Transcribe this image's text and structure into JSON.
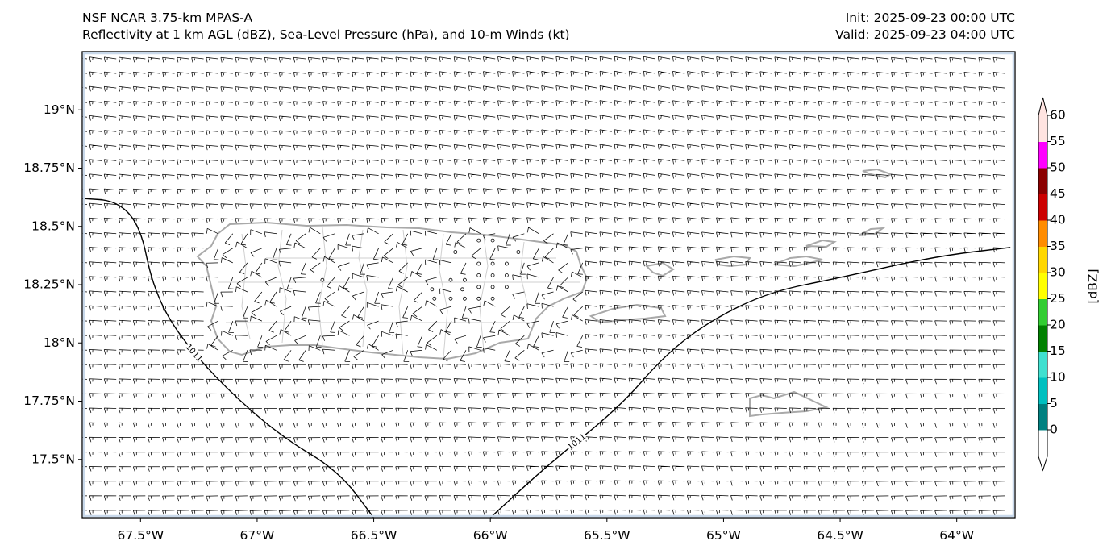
{
  "header": {
    "model": "NSF NCAR 3.75-km MPAS-A",
    "fields": "Reflectivity at 1 km AGL (dBZ), Sea-Level Pressure (hPa), and 10-m Winds (kt)",
    "init": "Init: 2025-09-23 00:00 UTC",
    "valid": "Valid: 2025-09-23 04:00 UTC"
  },
  "map": {
    "lon_range": [
      -67.75,
      -63.75
    ],
    "lat_range": [
      17.25,
      19.25
    ],
    "lat_ticks": [
      {
        "value": 19.0,
        "label": "19°N"
      },
      {
        "value": 18.75,
        "label": "18.75°N"
      },
      {
        "value": 18.5,
        "label": "18.5°N"
      },
      {
        "value": 18.25,
        "label": "18.25°N"
      },
      {
        "value": 18.0,
        "label": "18°N"
      },
      {
        "value": 17.75,
        "label": "17.75°N"
      },
      {
        "value": 17.5,
        "label": "17.5°N"
      }
    ],
    "lon_ticks": [
      {
        "value": -67.5,
        "label": "67.5°W"
      },
      {
        "value": -67.0,
        "label": "67°W"
      },
      {
        "value": -66.5,
        "label": "66.5°W"
      },
      {
        "value": -66.0,
        "label": "66°W"
      },
      {
        "value": -65.5,
        "label": "65.5°W"
      },
      {
        "value": -65.0,
        "label": "65°W"
      },
      {
        "value": -64.5,
        "label": "64.5°W"
      },
      {
        "value": -64.0,
        "label": "64°W"
      }
    ],
    "isobars": [
      {
        "label": "1011",
        "points": [
          [
            -67.75,
            18.62
          ],
          [
            -67.6,
            18.61
          ],
          [
            -67.5,
            18.5
          ],
          [
            -67.45,
            18.25
          ],
          [
            -67.35,
            18.05
          ],
          [
            -67.15,
            17.82
          ],
          [
            -66.9,
            17.6
          ],
          [
            -66.65,
            17.45
          ],
          [
            -66.5,
            17.25
          ]
        ]
      },
      {
        "label": "1011",
        "points": [
          [
            -66.0,
            17.25
          ],
          [
            -65.75,
            17.48
          ],
          [
            -65.45,
            17.72
          ],
          [
            -65.25,
            17.95
          ],
          [
            -65.05,
            18.1
          ],
          [
            -64.8,
            18.22
          ],
          [
            -64.5,
            18.28
          ],
          [
            -64.1,
            18.37
          ],
          [
            -63.77,
            18.41
          ]
        ]
      }
    ],
    "calm_points": [
      [
        -66.72,
        18.27
      ],
      [
        -66.25,
        18.23
      ],
      [
        -66.24,
        18.19
      ],
      [
        -66.15,
        18.39
      ],
      [
        -66.05,
        18.44
      ],
      [
        -65.99,
        18.44
      ],
      [
        -66.05,
        18.34
      ],
      [
        -65.99,
        18.34
      ],
      [
        -65.93,
        18.34
      ],
      [
        -65.88,
        18.39
      ],
      [
        -66.05,
        18.29
      ],
      [
        -65.99,
        18.29
      ],
      [
        -65.93,
        18.29
      ],
      [
        -66.17,
        18.27
      ],
      [
        -66.11,
        18.27
      ],
      [
        -66.05,
        18.24
      ],
      [
        -65.99,
        18.24
      ],
      [
        -65.93,
        18.24
      ],
      [
        -66.17,
        18.19
      ],
      [
        -66.11,
        18.19
      ],
      [
        -66.05,
        18.19
      ],
      [
        -65.99,
        18.19
      ],
      [
        -66.12,
        18.23
      ]
    ]
  },
  "colorbar": {
    "label": "[dBZ]",
    "levels": [
      0,
      5,
      10,
      15,
      20,
      25,
      30,
      35,
      40,
      45,
      50,
      55,
      60
    ],
    "colors": [
      "#008080",
      "#00c0c0",
      "#40e0d0",
      "#008000",
      "#32cd32",
      "#ffff00",
      "#ffd700",
      "#ff8c00",
      "#cc0000",
      "#8b0000",
      "#ff00ff",
      "#ffe4e1"
    ],
    "tick_labels": [
      "0",
      "5",
      "10",
      "15",
      "20",
      "25",
      "30",
      "35",
      "40",
      "45",
      "50",
      "55",
      "60"
    ]
  }
}
